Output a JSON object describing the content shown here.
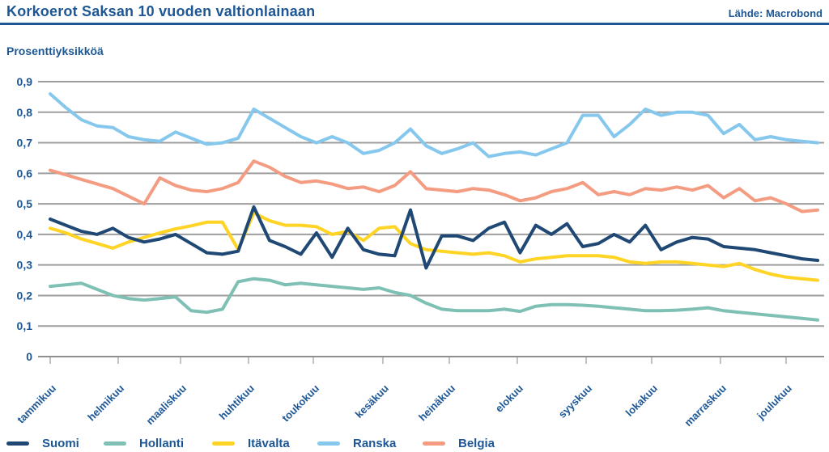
{
  "header": {
    "title": "Korkoerot Saksan 10 vuoden valtionlainaan",
    "source": "Lähde: Macrobond"
  },
  "colors": {
    "text_blue": "#1d5795",
    "rule_navy": "#1d5795",
    "gridline": "#9e9e9e",
    "axis": "#8f8f8f",
    "tick": "#c2c2c2",
    "background": "#ffffff"
  },
  "chart_data": {
    "type": "line",
    "title": "Korkoerot Saksan 10 vuoden valtionlainaan",
    "unit_label": "Prosenttiyksikköä",
    "x_description": "weekly observations, January–December",
    "categories_months": [
      "tammikuu",
      "helmikuu",
      "maaliskuu",
      "huhtikuu",
      "toukokuu",
      "kesäkuu",
      "heinäkuu",
      "elokuu",
      "syyskuu",
      "lokakuu",
      "marraskuu",
      "joulukuu"
    ],
    "month_tick_weeks": [
      0,
      4.34,
      8.32,
      12.66,
      16.8,
      21.24,
      25.48,
      29.82,
      34.22,
      38.4,
      42.79,
      46.98
    ],
    "y_tick_labels": [
      "0,9",
      "0,8",
      "0,7",
      "0,6",
      "0,5",
      "0,4",
      "0,3",
      "0,2",
      "0,1",
      "0"
    ],
    "y_tick_values": [
      0.9,
      0.8,
      0.7,
      0.6,
      0.5,
      0.4,
      0.3,
      0.2,
      0.1,
      0
    ],
    "ylim": [
      0,
      0.9
    ],
    "grid": true,
    "legend_position": "bottom",
    "series": [
      {
        "name": "Suomi",
        "color": "#1f4874",
        "values": [
          0.45,
          0.43,
          0.41,
          0.4,
          0.42,
          0.39,
          0.375,
          0.385,
          0.4,
          0.37,
          0.34,
          0.335,
          0.345,
          0.49,
          0.38,
          0.36,
          0.335,
          0.405,
          0.325,
          0.42,
          0.35,
          0.335,
          0.33,
          0.48,
          0.29,
          0.395,
          0.395,
          0.38,
          0.42,
          0.44,
          0.34,
          0.43,
          0.4,
          0.435,
          0.36,
          0.37,
          0.4,
          0.375,
          0.43,
          0.35,
          0.375,
          0.39,
          0.385,
          0.36,
          0.355,
          0.35,
          0.34,
          0.33,
          0.32,
          0.315
        ]
      },
      {
        "name": "Hollanti",
        "color": "#7fc0b5",
        "values": [
          0.23,
          0.235,
          0.24,
          0.22,
          0.2,
          0.19,
          0.185,
          0.19,
          0.195,
          0.15,
          0.145,
          0.155,
          0.245,
          0.255,
          0.25,
          0.235,
          0.24,
          0.235,
          0.23,
          0.225,
          0.22,
          0.225,
          0.21,
          0.2,
          0.175,
          0.155,
          0.15,
          0.15,
          0.15,
          0.155,
          0.148,
          0.165,
          0.17,
          0.17,
          0.168,
          0.165,
          0.16,
          0.155,
          0.15,
          0.15,
          0.152,
          0.155,
          0.16,
          0.15,
          0.145,
          0.14,
          0.135,
          0.13,
          0.125,
          0.12
        ]
      },
      {
        "name": "Itävalta",
        "color": "#ffd424",
        "values": [
          0.42,
          0.405,
          0.385,
          0.37,
          0.355,
          0.375,
          0.39,
          0.405,
          0.418,
          0.428,
          0.44,
          0.44,
          0.35,
          0.47,
          0.445,
          0.43,
          0.43,
          0.425,
          0.4,
          0.41,
          0.38,
          0.42,
          0.425,
          0.37,
          0.35,
          0.345,
          0.34,
          0.335,
          0.34,
          0.33,
          0.31,
          0.32,
          0.325,
          0.33,
          0.33,
          0.33,
          0.325,
          0.31,
          0.305,
          0.31,
          0.31,
          0.305,
          0.3,
          0.295,
          0.305,
          0.285,
          0.27,
          0.26,
          0.255,
          0.25
        ]
      },
      {
        "name": "Ranska",
        "color": "#86c8ed",
        "values": [
          0.86,
          0.815,
          0.775,
          0.755,
          0.75,
          0.72,
          0.71,
          0.705,
          0.735,
          0.715,
          0.695,
          0.7,
          0.715,
          0.81,
          0.78,
          0.75,
          0.72,
          0.7,
          0.72,
          0.7,
          0.665,
          0.675,
          0.7,
          0.745,
          0.69,
          0.665,
          0.68,
          0.7,
          0.655,
          0.665,
          0.67,
          0.66,
          0.68,
          0.7,
          0.79,
          0.79,
          0.72,
          0.76,
          0.81,
          0.79,
          0.8,
          0.8,
          0.79,
          0.73,
          0.76,
          0.71,
          0.72,
          0.71,
          0.705,
          0.7
        ]
      },
      {
        "name": "Belgia",
        "color": "#f49c82",
        "values": [
          0.61,
          0.595,
          0.58,
          0.565,
          0.55,
          0.525,
          0.5,
          0.585,
          0.56,
          0.545,
          0.54,
          0.55,
          0.57,
          0.64,
          0.62,
          0.59,
          0.57,
          0.575,
          0.565,
          0.55,
          0.555,
          0.54,
          0.56,
          0.605,
          0.55,
          0.545,
          0.54,
          0.55,
          0.545,
          0.53,
          0.51,
          0.52,
          0.54,
          0.55,
          0.57,
          0.53,
          0.54,
          0.53,
          0.55,
          0.545,
          0.555,
          0.545,
          0.56,
          0.52,
          0.55,
          0.51,
          0.52,
          0.5,
          0.475,
          0.48
        ]
      }
    ],
    "draw_order": [
      "Ranska",
      "Belgia",
      "Itävalta",
      "Suomi",
      "Hollanti"
    ]
  }
}
